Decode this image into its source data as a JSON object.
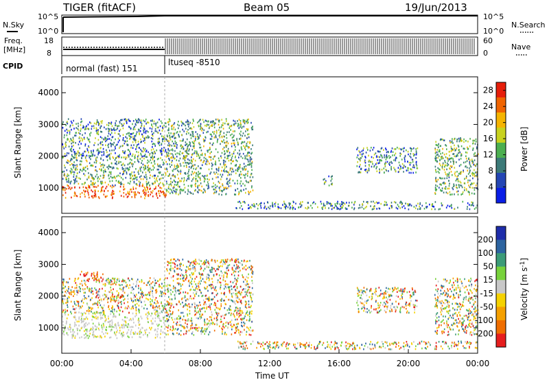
{
  "header": {
    "radar": "TIGER (fitACF)",
    "beam": "Beam 05",
    "date": "19/Jun/2013"
  },
  "top_panels": {
    "nsky_label": "N.Sky",
    "nsearch_label": "N.Search",
    "noise_ticks": [
      "10^5",
      "10^0"
    ],
    "freq_label": "Freq.",
    "freq_unit": "[MHz]",
    "freq_ticks": [
      "18",
      "8"
    ],
    "nave_label": "Nave",
    "nave_ticks": [
      "60",
      "0"
    ],
    "cpid_label": "CPID",
    "cpid_segments": [
      {
        "name": "normal (fast) 151",
        "start_hour": 0,
        "end_hour": 6
      },
      {
        "name": "ltuseq -8510",
        "start_hour": 6,
        "end_hour": 24
      }
    ]
  },
  "chart_data": [
    {
      "type": "heatmap",
      "title": "",
      "xlabel": "",
      "ylabel": "Slant Range [km]",
      "xlim": [
        0,
        24
      ],
      "ylim": [
        200,
        4500
      ],
      "yticks": [
        1000,
        2000,
        3000,
        4000
      ],
      "colorbar": {
        "label": "Power [dB]",
        "ticks": [
          4,
          8,
          12,
          16,
          20,
          24,
          28
        ],
        "range": [
          0,
          30
        ],
        "colors": [
          "#0a1ee6",
          "#2446b4",
          "#3c7a78",
          "#4caf50",
          "#c8d21e",
          "#f5b400",
          "#f06400",
          "#e61e0a"
        ]
      },
      "echo_regions": [
        {
          "t_start": 0.0,
          "t_end": 6.0,
          "r_start": 700,
          "r_end": 1100,
          "level": "high"
        },
        {
          "t_start": 0.0,
          "t_end": 6.0,
          "r_start": 1100,
          "r_end": 2000,
          "level": "medium"
        },
        {
          "t_start": 0.0,
          "t_end": 6.0,
          "r_start": 2000,
          "r_end": 3200,
          "level": "low"
        },
        {
          "t_start": 6.0,
          "t_end": 11.0,
          "r_start": 800,
          "r_end": 3200,
          "level": "medium"
        },
        {
          "t_start": 10.0,
          "t_end": 24.0,
          "r_start": 350,
          "r_end": 600,
          "level": "low"
        },
        {
          "t_start": 15.0,
          "t_end": 15.6,
          "r_start": 1100,
          "r_end": 1400,
          "level": "low"
        },
        {
          "t_start": 17.0,
          "t_end": 20.5,
          "r_start": 1500,
          "r_end": 2300,
          "level": "low"
        },
        {
          "t_start": 21.5,
          "t_end": 24.0,
          "r_start": 800,
          "r_end": 2600,
          "level": "medium"
        }
      ]
    },
    {
      "type": "heatmap",
      "title": "",
      "xlabel": "Time UT",
      "ylabel": "Slant Range [km]",
      "xlim": [
        0,
        24
      ],
      "ylim": [
        200,
        4500
      ],
      "yticks": [
        1000,
        2000,
        3000,
        4000
      ],
      "xticks": [
        "00:00",
        "04:00",
        "08:00",
        "12:00",
        "16:00",
        "20:00",
        "00:00"
      ],
      "colorbar": {
        "label": "Velocity [m s-1]",
        "label_main": "Velocity",
        "label_unit": "m s",
        "label_exp": "-1",
        "ticks": [
          "200",
          "100",
          "50",
          "15",
          "-15",
          "-50",
          "-100",
          "-200"
        ],
        "colors": [
          "#1e2daa",
          "#2d64a0",
          "#3c9b78",
          "#78d23c",
          "#c8c8c8",
          "#f5d200",
          "#f5a000",
          "#f06e00",
          "#e61e1e"
        ]
      },
      "echo_regions": [
        {
          "t_start": 0.0,
          "t_end": 6.0,
          "r_start": 700,
          "r_end": 1500,
          "level": "ground"
        },
        {
          "t_start": 0.0,
          "t_end": 6.0,
          "r_start": 1500,
          "r_end": 2600,
          "level": "mixed"
        },
        {
          "t_start": 1.0,
          "t_end": 2.5,
          "r_start": 2500,
          "r_end": 2800,
          "level": "negative"
        },
        {
          "t_start": 6.0,
          "t_end": 11.0,
          "r_start": 800,
          "r_end": 3200,
          "level": "mixed"
        },
        {
          "t_start": 10.0,
          "t_end": 24.0,
          "r_start": 350,
          "r_end": 600,
          "level": "mixed"
        },
        {
          "t_start": 17.0,
          "t_end": 20.5,
          "r_start": 1500,
          "r_end": 2300,
          "level": "mixed"
        },
        {
          "t_start": 21.5,
          "t_end": 24.0,
          "r_start": 800,
          "r_end": 2600,
          "level": "mixed"
        }
      ]
    }
  ]
}
